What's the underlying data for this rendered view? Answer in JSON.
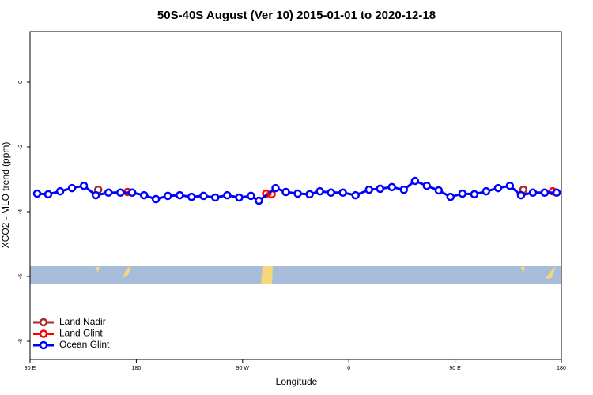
{
  "chart_data": {
    "type": "line",
    "title": "50S-40S August (Ver 10)   2015-01-01 to 2020-12-18",
    "xlabel": "Longitude",
    "ylabel": "XCO2 - MLO trend (ppm)",
    "xlim": [
      90,
      540
    ],
    "ylim": [
      -8.56,
      1.56
    ],
    "xticks": [
      {
        "value": 90,
        "label": "90 E"
      },
      180,
      {
        "value": 270,
        "label": "90 W"
      },
      {
        "value": 360,
        "label": "0"
      },
      {
        "value": 450,
        "label": "90 E"
      },
      {
        "value": 540,
        "label": "180"
      }
    ],
    "yticks": [
      0,
      -2,
      -4,
      -6,
      -8
    ],
    "legend": "bottom-left",
    "series": [
      {
        "name": "Land Nadir",
        "color": "#a52a2a",
        "x": [
          147.7,
          507.8
        ],
        "values": [
          -3.32,
          -3.32
        ]
      },
      {
        "name": "Land Glint",
        "color": "#ff0000",
        "x": [
          172.5,
          289.9,
          294.6,
          532.6
        ],
        "values": [
          -3.39,
          -3.44,
          -3.46,
          -3.37
        ]
      },
      {
        "name": "Ocean Glint",
        "color": "#0000ff",
        "x": [
          96.0,
          105.4,
          115.5,
          125.5,
          135.6,
          145.7,
          156.4,
          166.5,
          176.5,
          186.6,
          196.6,
          206.7,
          216.8,
          226.8,
          236.9,
          246.9,
          257.0,
          267.1,
          277.1,
          283.8,
          297.9,
          306.6,
          316.7,
          326.8,
          335.5,
          344.9,
          354.9,
          365.7,
          377.1,
          386.5,
          396.5,
          406.6,
          416.0,
          426.0,
          436.1,
          446.1,
          456.2,
          466.3,
          476.3,
          486.4,
          496.4,
          505.8,
          515.9,
          525.9,
          536.0
        ],
        "values": [
          -3.44,
          -3.46,
          -3.37,
          -3.27,
          -3.2,
          -3.49,
          -3.41,
          -3.41,
          -3.41,
          -3.49,
          -3.61,
          -3.51,
          -3.49,
          -3.54,
          -3.51,
          -3.56,
          -3.49,
          -3.56,
          -3.51,
          -3.66,
          -3.27,
          -3.39,
          -3.44,
          -3.46,
          -3.37,
          -3.41,
          -3.41,
          -3.49,
          -3.32,
          -3.29,
          -3.24,
          -3.32,
          -3.05,
          -3.2,
          -3.34,
          -3.54,
          -3.44,
          -3.46,
          -3.37,
          -3.27,
          -3.2,
          -3.49,
          -3.41,
          -3.41,
          -3.41
        ]
      }
    ]
  }
}
